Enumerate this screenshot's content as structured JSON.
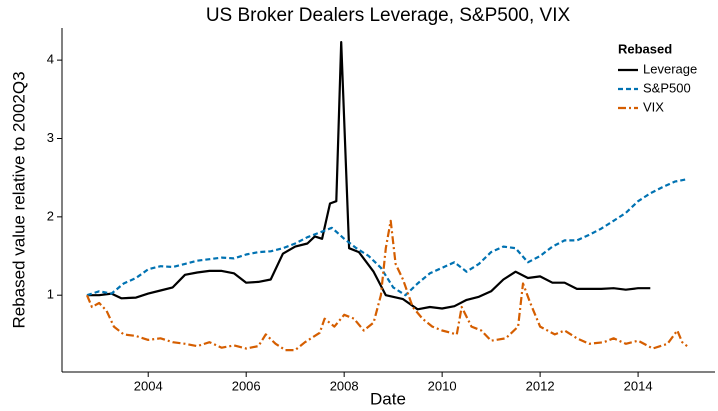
{
  "chart_data": {
    "type": "line",
    "title": "US Broker Dealers Leverage, S&P500, VIX",
    "x_label": "Date",
    "y_label": "Rebased value relative to 2002Q3",
    "legend_title": "Rebased",
    "legend": "top-right",
    "grid": false,
    "xlim": [
      2002.24,
      2015.57
    ],
    "ylim": [
      0.02,
      4.41
    ],
    "xticks": [
      2004,
      2006,
      2008,
      2010,
      2012,
      2014
    ],
    "yticks": [
      1,
      2,
      3,
      4
    ],
    "series": [
      {
        "name": "Leverage",
        "color": "#000000",
        "style": "solid",
        "x": [
          2002.75,
          2003.0,
          2003.25,
          2003.45,
          2003.75,
          2004.0,
          2004.25,
          2004.5,
          2004.75,
          2005.0,
          2005.25,
          2005.5,
          2005.75,
          2006.0,
          2006.25,
          2006.5,
          2006.75,
          2007.0,
          2007.25,
          2007.4,
          2007.55,
          2007.71,
          2007.84,
          2007.94,
          2008.1,
          2008.3,
          2008.6,
          2008.85,
          2009.2,
          2009.5,
          2009.75,
          2010.0,
          2010.25,
          2010.5,
          2010.75,
          2011.0,
          2011.25,
          2011.5,
          2011.75,
          2012.0,
          2012.25,
          2012.5,
          2012.75,
          2013.0,
          2013.25,
          2013.5,
          2013.75,
          2014.0,
          2014.25
        ],
        "values": [
          1.0,
          1.0,
          1.02,
          0.96,
          0.97,
          1.02,
          1.06,
          1.1,
          1.26,
          1.29,
          1.31,
          1.31,
          1.28,
          1.16,
          1.17,
          1.2,
          1.53,
          1.62,
          1.66,
          1.75,
          1.72,
          2.17,
          2.2,
          4.23,
          1.6,
          1.55,
          1.3,
          1.0,
          0.95,
          0.82,
          0.85,
          0.83,
          0.86,
          0.94,
          0.98,
          1.05,
          1.2,
          1.3,
          1.22,
          1.24,
          1.16,
          1.16,
          1.08,
          1.08,
          1.08,
          1.09,
          1.07,
          1.09,
          1.09
        ]
      },
      {
        "name": "S&P500",
        "color": "#0072b2",
        "style": "dashed",
        "x": [
          2002.75,
          2003.0,
          2003.25,
          2003.5,
          2003.75,
          2004.0,
          2004.25,
          2004.5,
          2004.75,
          2005.0,
          2005.25,
          2005.5,
          2005.75,
          2006.0,
          2006.25,
          2006.5,
          2006.75,
          2007.0,
          2007.25,
          2007.5,
          2007.75,
          2008.0,
          2008.25,
          2008.5,
          2008.75,
          2009.0,
          2009.25,
          2009.5,
          2009.75,
          2010.0,
          2010.25,
          2010.5,
          2010.75,
          2011.0,
          2011.25,
          2011.5,
          2011.75,
          2012.0,
          2012.25,
          2012.5,
          2012.75,
          2013.0,
          2013.25,
          2013.5,
          2013.75,
          2014.0,
          2014.25,
          2014.5,
          2014.75,
          2015.0
        ],
        "values": [
          1.0,
          1.05,
          1.02,
          1.15,
          1.22,
          1.33,
          1.37,
          1.36,
          1.4,
          1.44,
          1.46,
          1.48,
          1.47,
          1.52,
          1.55,
          1.56,
          1.6,
          1.66,
          1.74,
          1.8,
          1.86,
          1.72,
          1.6,
          1.5,
          1.35,
          1.1,
          1.0,
          1.15,
          1.28,
          1.35,
          1.42,
          1.3,
          1.4,
          1.55,
          1.62,
          1.6,
          1.42,
          1.5,
          1.62,
          1.7,
          1.7,
          1.77,
          1.85,
          1.95,
          2.05,
          2.2,
          2.3,
          2.38,
          2.45,
          2.48
        ]
      },
      {
        "name": "VIX",
        "color": "#d55e00",
        "style": "dotdash",
        "x": [
          2002.75,
          2002.85,
          2003.0,
          2003.15,
          2003.3,
          2003.5,
          2003.75,
          2004.0,
          2004.25,
          2004.5,
          2004.75,
          2005.0,
          2005.25,
          2005.5,
          2005.75,
          2006.0,
          2006.25,
          2006.4,
          2006.6,
          2006.8,
          2007.0,
          2007.2,
          2007.5,
          2007.6,
          2007.8,
          2008.0,
          2008.2,
          2008.4,
          2008.6,
          2008.75,
          2008.85,
          2008.95,
          2009.05,
          2009.2,
          2009.4,
          2009.6,
          2009.8,
          2010.0,
          2010.3,
          2010.4,
          2010.6,
          2010.8,
          2011.0,
          2011.3,
          2011.55,
          2011.65,
          2011.8,
          2012.0,
          2012.3,
          2012.5,
          2012.75,
          2013.0,
          2013.3,
          2013.5,
          2013.75,
          2014.0,
          2014.3,
          2014.6,
          2014.8,
          2014.9,
          2015.0
        ],
        "values": [
          1.0,
          0.85,
          0.9,
          0.8,
          0.6,
          0.5,
          0.48,
          0.43,
          0.45,
          0.4,
          0.38,
          0.35,
          0.4,
          0.33,
          0.36,
          0.32,
          0.35,
          0.5,
          0.38,
          0.3,
          0.3,
          0.4,
          0.52,
          0.7,
          0.6,
          0.75,
          0.7,
          0.55,
          0.65,
          1.0,
          1.6,
          1.95,
          1.4,
          1.2,
          0.85,
          0.7,
          0.6,
          0.55,
          0.5,
          0.85,
          0.6,
          0.55,
          0.42,
          0.45,
          0.6,
          1.15,
          0.9,
          0.6,
          0.5,
          0.55,
          0.45,
          0.38,
          0.4,
          0.45,
          0.38,
          0.42,
          0.32,
          0.38,
          0.55,
          0.4,
          0.35
        ]
      }
    ]
  }
}
